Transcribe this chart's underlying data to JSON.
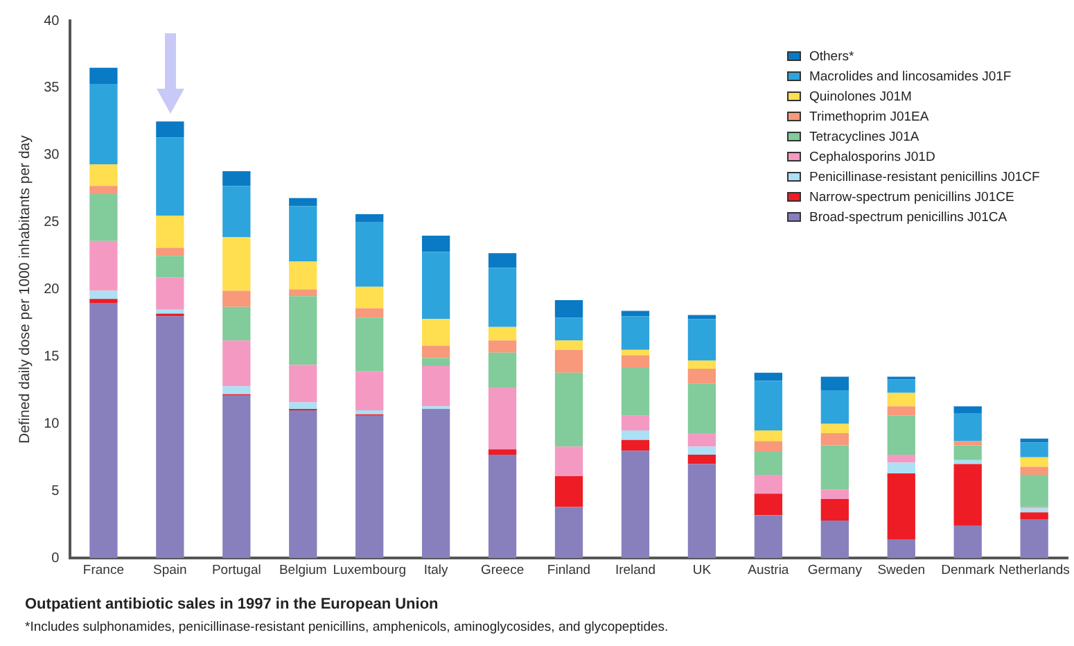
{
  "chart_data": {
    "type": "bar",
    "stacked": true,
    "title": "Outpatient antibiotic sales in 1997 in the European Union",
    "annotations": [
      "*Includes sulphonamides, penicillinase-resistant penicillins, amphenicols, aminoglycosides, and glycopeptides."
    ],
    "ylabel": "Defined daily dose per 1000 inhabitants per day",
    "ylim": [
      0,
      40
    ],
    "yticks": [
      0,
      5,
      10,
      15,
      20,
      25,
      30,
      35,
      40
    ],
    "grid": false,
    "legend": "top right",
    "categories": [
      "France",
      "Spain",
      "Portugal",
      "Belgium",
      "Luxembourg",
      "Italy",
      "Greece",
      "Finland",
      "Ireland",
      "UK",
      "Austria",
      "Germany",
      "Sweden",
      "Denmark",
      "Netherlands"
    ],
    "series": [
      {
        "name": "Broad-spectrum penicillins J01CA",
        "color": "#8780bd",
        "values": [
          19.0,
          18.0,
          12.1,
          11.0,
          10.6,
          11.1,
          7.7,
          3.8,
          8.0,
          7.0,
          3.2,
          2.8,
          1.4,
          2.4,
          2.9
        ]
      },
      {
        "name": "Narrow-spectrum penicillins J01CE",
        "color": "#ee1c25",
        "values": [
          0.3,
          0.2,
          0.1,
          0.1,
          0.1,
          0,
          0.4,
          2.3,
          0.8,
          0.7,
          1.6,
          1.6,
          4.9,
          4.6,
          0.5
        ]
      },
      {
        "name": "Penicillinase-resistant penicillins J01CF",
        "color": "#ace0f5",
        "values": [
          0.6,
          0.3,
          0.6,
          0.5,
          0.3,
          0.2,
          0,
          0,
          0.7,
          0.6,
          0,
          0,
          0.8,
          0.3,
          0.3
        ]
      },
      {
        "name": "Cephalosporins J01D",
        "color": "#f49ac2",
        "values": [
          3.7,
          2.4,
          3.4,
          2.8,
          2.9,
          3.0,
          4.6,
          2.2,
          1.1,
          1.0,
          1.4,
          0.7,
          0.6,
          0,
          0.1
        ]
      },
      {
        "name": "Tetracyclines J01A",
        "color": "#82cb9b",
        "values": [
          3.5,
          1.6,
          2.5,
          5.1,
          4.0,
          0.6,
          2.6,
          5.5,
          3.6,
          3.7,
          1.7,
          3.3,
          2.9,
          1.1,
          2.4
        ]
      },
      {
        "name": "Trimethoprim J01EA",
        "color": "#f7997a",
        "values": [
          0.6,
          0.6,
          1.2,
          0.5,
          0.7,
          0.9,
          0.9,
          1.7,
          0.9,
          1.1,
          0.8,
          0.9,
          0.7,
          0.3,
          0.6
        ]
      },
      {
        "name": "Quinolones J01M",
        "color": "#ffde4f",
        "values": [
          1.6,
          2.4,
          4.0,
          2.1,
          1.6,
          2.0,
          1.0,
          0.7,
          0.4,
          0.6,
          0.8,
          0.7,
          1.0,
          0,
          0.7
        ]
      },
      {
        "name": "Macrolides and lincosamides J01F",
        "color": "#2ea4dc",
        "values": [
          6.0,
          5.8,
          3.8,
          4.1,
          4.8,
          5.0,
          4.4,
          1.7,
          2.5,
          3.1,
          3.7,
          2.5,
          1.0,
          2.1,
          1.1
        ]
      },
      {
        "name": "Others*",
        "color": "#0a7ac4",
        "values": [
          1.2,
          1.2,
          1.1,
          0.6,
          0.6,
          1.2,
          1.1,
          1.3,
          0.4,
          0.3,
          0.6,
          1.0,
          0.2,
          0.5,
          0.3
        ]
      }
    ]
  }
}
